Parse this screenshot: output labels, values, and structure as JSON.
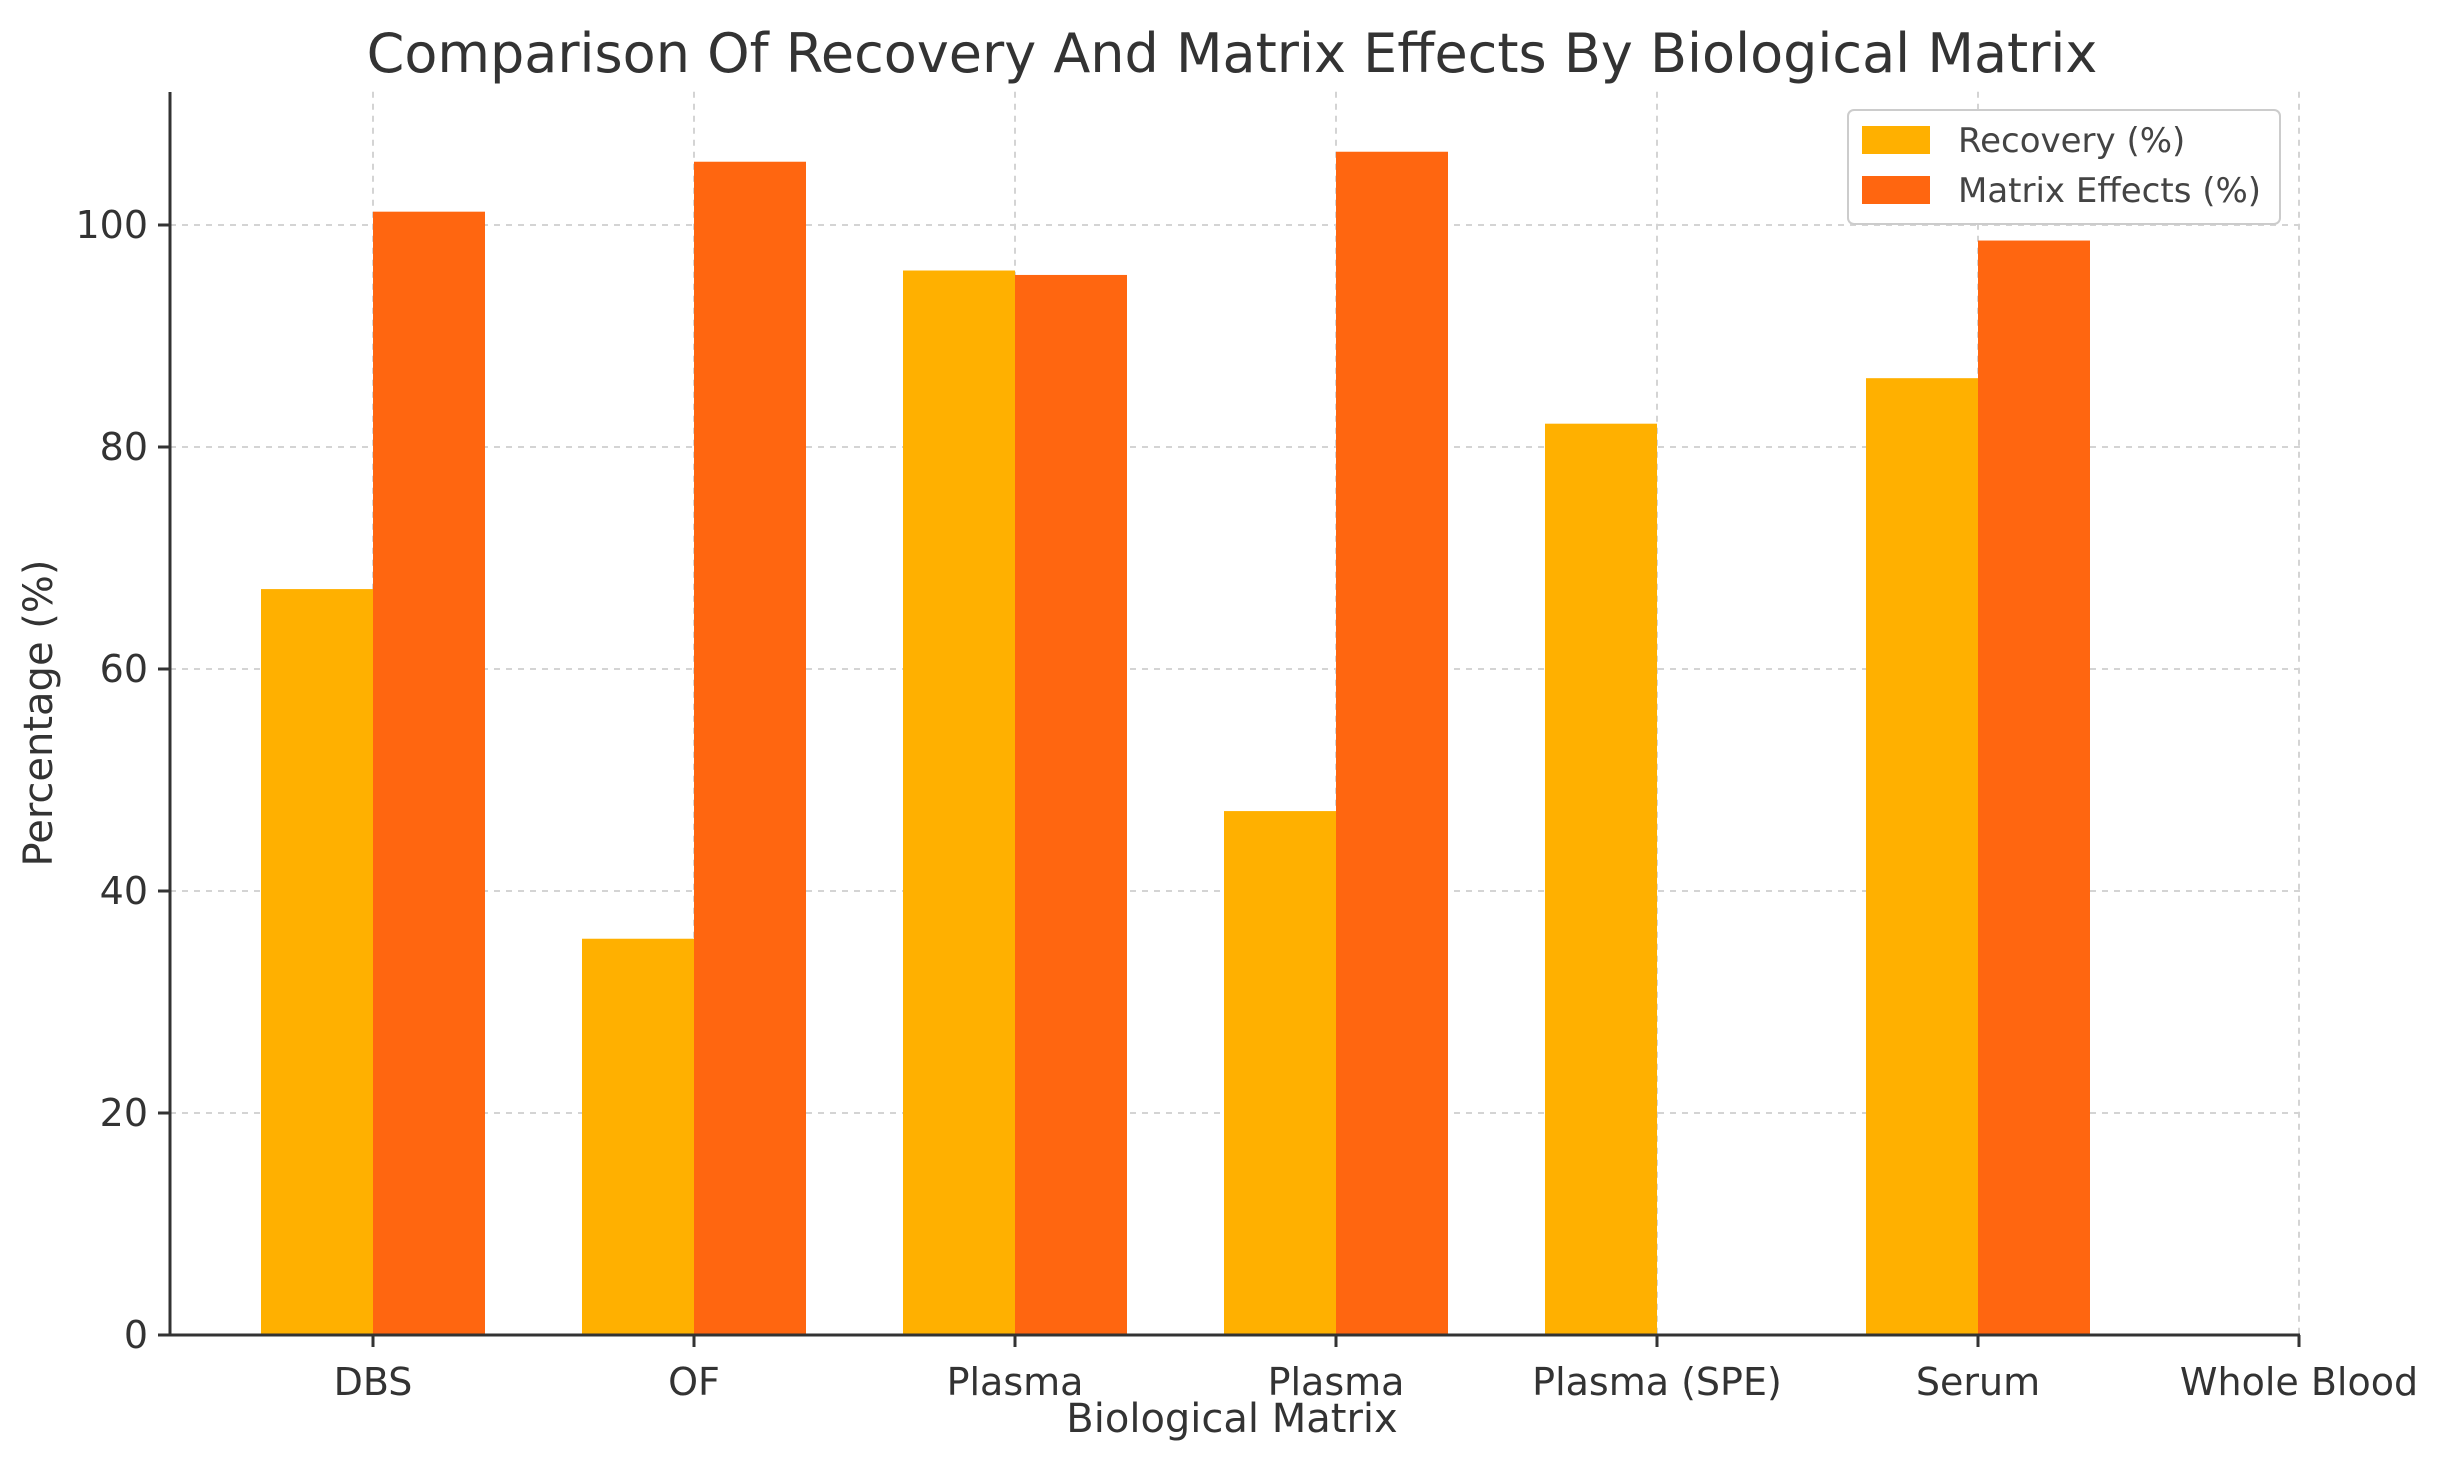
{
  "chart_data": {
    "type": "bar",
    "title": "Comparison Of Recovery And Matrix Effects By Biological Matrix",
    "xlabel": "Biological Matrix",
    "ylabel": "Percentage (%)",
    "categories": [
      "DBS",
      "OF",
      "Plasma",
      "Plasma",
      "Plasma (SPE)",
      "Serum",
      "Whole Blood"
    ],
    "series": [
      {
        "name": "Recovery (%)",
        "color": "#FFB000",
        "values": [
          67.2,
          35.7,
          95.9,
          47.2,
          82.1,
          86.2,
          null
        ]
      },
      {
        "name": "Matrix Effects (%)",
        "color": "#FF6610",
        "values": [
          101.2,
          105.7,
          95.5,
          106.6,
          null,
          98.6,
          null
        ]
      }
    ],
    "ylim": [
      0,
      112
    ],
    "yticks": [
      0,
      20,
      40,
      60,
      80,
      100
    ],
    "grid": true,
    "legend_position": "top-right"
  }
}
